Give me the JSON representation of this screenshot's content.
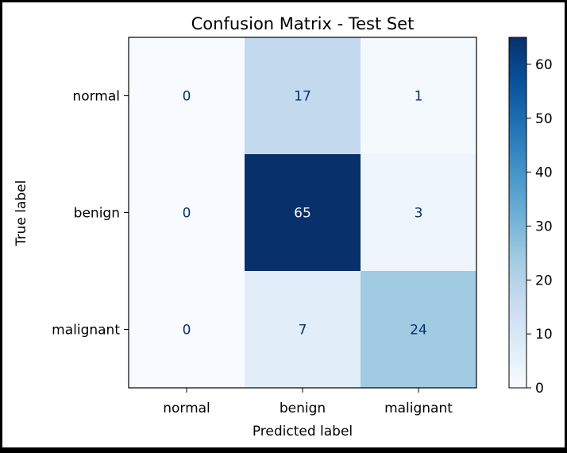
{
  "chart_data": {
    "type": "heatmap",
    "title": "Confusion Matrix - Test Set",
    "xlabel": "Predicted label",
    "ylabel": "True label",
    "x_categories": [
      "normal",
      "benign",
      "malignant"
    ],
    "y_categories": [
      "normal",
      "benign",
      "malignant"
    ],
    "values": [
      [
        0,
        17,
        1
      ],
      [
        0,
        65,
        3
      ],
      [
        0,
        7,
        24
      ]
    ],
    "colormap": "Blues",
    "color_range": [
      0,
      65
    ],
    "colorbar": {
      "ticks": [
        "0",
        "10",
        "20",
        "30",
        "40",
        "50",
        "60"
      ]
    },
    "colors": {
      "page_border": "#000000",
      "background": "#ffffff",
      "text": "#000000",
      "light_cell_text": "#08306b",
      "dark_cell_text": "#f7fbff"
    }
  }
}
